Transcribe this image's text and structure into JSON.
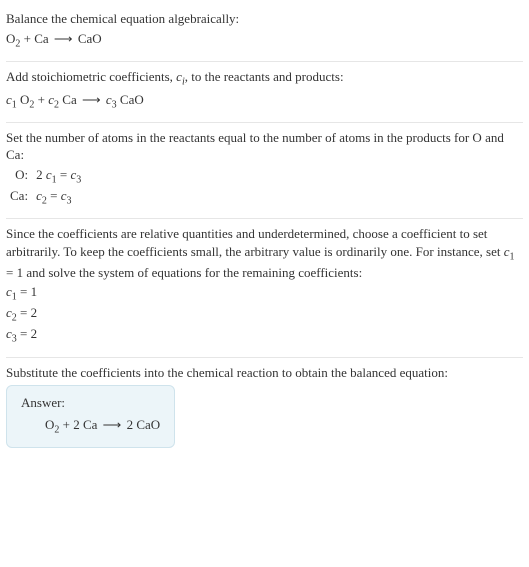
{
  "colors": {
    "text": "#333333",
    "separator": "#e6e6e6",
    "answer_bg": "#ecf5f9",
    "answer_border": "#cfe3ec"
  },
  "typography": {
    "base_fontsize_pt": 10,
    "sub_fontsize_pt": 8,
    "font_family": "Georgia, serif"
  },
  "section1": {
    "text": "Balance the chemical equation algebraically:",
    "eq_O2": "O",
    "eq_O2_sub": "2",
    "eq_plus": " + Ca ",
    "eq_arrow": "⟶",
    "eq_rhs": " CaO"
  },
  "section2": {
    "text_a": "Add stoichiometric coefficients, ",
    "ci_c": "c",
    "ci_i": "i",
    "text_b": ", to the reactants and products:",
    "c1_c": "c",
    "c1_s": "1",
    "sp1": " O",
    "O2s": "2",
    "plus": " + ",
    "c2_c": "c",
    "c2_s": "2",
    "sp2": " Ca ",
    "arrow": "⟶",
    "sp3": " ",
    "c3_c": "c",
    "c3_s": "3",
    "sp4": " CaO"
  },
  "section3": {
    "text": "Set the number of atoms in the reactants equal to the number of atoms in the products for O and Ca:",
    "rows": [
      {
        "label": "O:",
        "lhs_pre": "2 ",
        "lhs_c": "c",
        "lhs_s": "1",
        "eq": " = ",
        "rhs_c": "c",
        "rhs_s": "3"
      },
      {
        "label": "Ca:",
        "lhs_pre": "",
        "lhs_c": "c",
        "lhs_s": "2",
        "eq": " = ",
        "rhs_c": "c",
        "rhs_s": "3"
      }
    ]
  },
  "section4": {
    "text_a": "Since the coefficients are relative quantities and underdetermined, choose a coefficient to set arbitrarily. To keep the coefficients small, the arbitrary value is ordinarily one. For instance, set ",
    "c1_c": "c",
    "c1_s": "1",
    "c1_eq": " = 1",
    "text_b": " and solve the system of equations for the remaining coefficients:",
    "lines": [
      {
        "c": "c",
        "s": "1",
        "v": " = 1"
      },
      {
        "c": "c",
        "s": "2",
        "v": " = 2"
      },
      {
        "c": "c",
        "s": "3",
        "v": " = 2"
      }
    ]
  },
  "section5": {
    "text": "Substitute the coefficients into the chemical reaction to obtain the balanced equation:",
    "answer_label": "Answer:",
    "eq_lhs1": "O",
    "eq_lhs1_sub": "2",
    "eq_mid": " + 2 Ca ",
    "eq_arrow": "⟶",
    "eq_rhs": " 2 CaO"
  }
}
